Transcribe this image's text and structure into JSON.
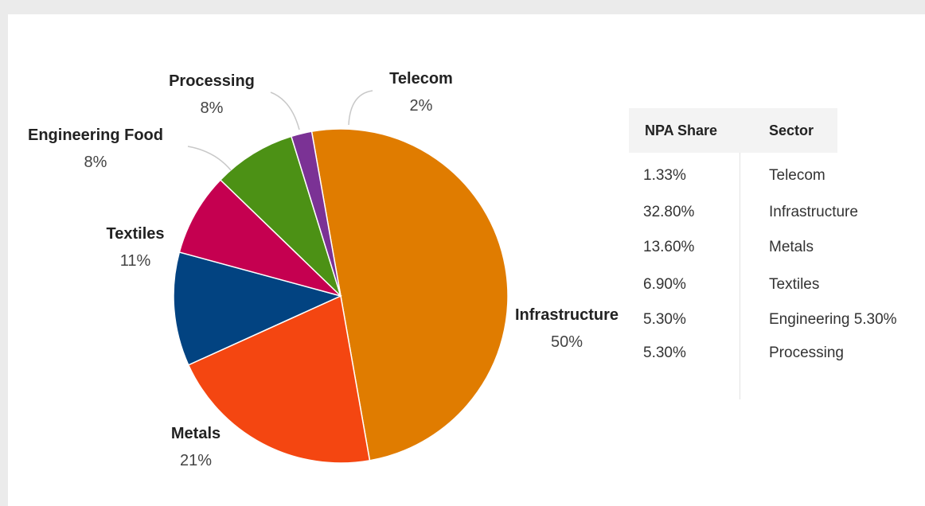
{
  "chart_data": {
    "type": "pie",
    "slices": [
      {
        "label": "Infrastructure",
        "value": 50,
        "pct_text": "50%",
        "color": "#e07c00"
      },
      {
        "label": "Metals",
        "value": 21,
        "pct_text": "21%",
        "color": "#f44611"
      },
      {
        "label": "Textiles",
        "value": 11,
        "pct_text": "11%",
        "color": "#024381"
      },
      {
        "label": "Engineering Food",
        "value": 8,
        "pct_text": "8%",
        "color": "#c50050"
      },
      {
        "label": "Processing",
        "value": 8,
        "pct_text": "8%",
        "color": "#4c9115"
      },
      {
        "label": "Telecom",
        "value": 2,
        "pct_text": "2%",
        "color": "#7b3295"
      }
    ]
  },
  "table": {
    "headers": {
      "share": "NPA Share",
      "sector": "Sector"
    },
    "rows": [
      {
        "share": "1.33%",
        "sector": "Telecom"
      },
      {
        "share": "32.80%",
        "sector": "Infrastructure"
      },
      {
        "share": "13.60%",
        "sector": "Metals"
      },
      {
        "share": "6.90%",
        "sector": "Textiles"
      },
      {
        "share": "5.30%",
        "sector": "Engineering  5.30%"
      },
      {
        "share": "5.30%",
        "sector": "Processing"
      }
    ]
  }
}
